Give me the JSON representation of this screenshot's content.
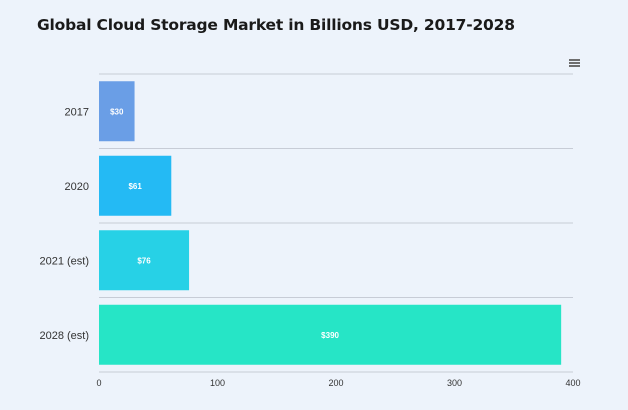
{
  "colors": {
    "background": "#edf3fb",
    "bars": [
      "#6a9ee6",
      "#24baf4",
      "#27d1e6",
      "#26e5c6"
    ],
    "grid": "#c7ccd6"
  },
  "toolbar": {
    "menu_icon": "hamburger-menu-icon"
  },
  "chart_data": {
    "type": "bar",
    "orientation": "horizontal",
    "title": "Global Cloud Storage Market in Billions USD, 2017-2028",
    "categories": [
      "2017",
      "2020",
      "2021 (est)",
      "2028 (est)"
    ],
    "values": [
      30,
      61,
      76,
      390
    ],
    "data_labels": [
      "$30",
      "$61",
      "$76",
      "$390"
    ],
    "xlim": [
      0,
      400
    ],
    "x_ticks": [
      0,
      100,
      200,
      300,
      400
    ],
    "grid": true,
    "legend": "none"
  }
}
